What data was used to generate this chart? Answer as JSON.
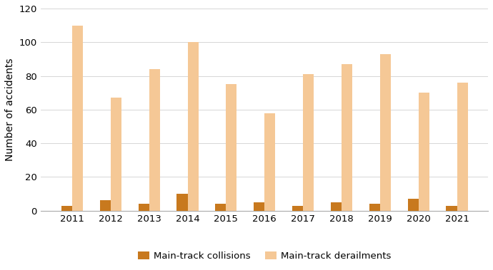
{
  "years": [
    2011,
    2012,
    2013,
    2014,
    2015,
    2016,
    2017,
    2018,
    2019,
    2020,
    2021
  ],
  "collisions": [
    3,
    6,
    4,
    10,
    4,
    5,
    3,
    5,
    4,
    7,
    3
  ],
  "derailments": [
    110,
    67,
    84,
    100,
    75,
    58,
    81,
    87,
    93,
    70,
    76
  ],
  "collision_color": "#c8791e",
  "derailment_color": "#f5c896",
  "ylabel": "Number of accidents",
  "ylim": [
    0,
    120
  ],
  "yticks": [
    0,
    20,
    40,
    60,
    80,
    100,
    120
  ],
  "legend_collision": "Main-track collisions",
  "legend_derailment": "Main-track derailments",
  "bar_width": 0.28,
  "background_color": "#ffffff",
  "grid_color": "#d0d0d0",
  "axis_label_fontsize": 10,
  "tick_fontsize": 9.5,
  "legend_fontsize": 9.5
}
